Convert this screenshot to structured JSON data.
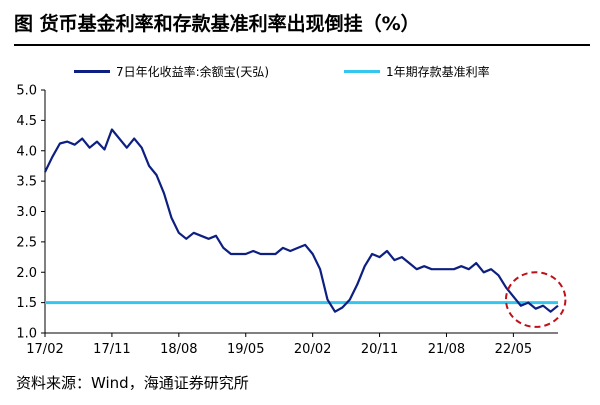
{
  "title": "图  货币基金利率和存款基准利率出现倒挂（%）",
  "source": "资料来源：Wind，海通证券研究所",
  "colors": {
    "yuebao": "#0d1f80",
    "deposit": "#35c6ef",
    "highlight": "#c0101a"
  },
  "chart_data": {
    "type": "line",
    "x_tick_labels": [
      "17/02",
      "17/11",
      "18/08",
      "19/05",
      "20/02",
      "20/11",
      "21/08",
      "22/05"
    ],
    "y_tick_labels": [
      "1.0",
      "1.5",
      "2.0",
      "2.5",
      "3.0",
      "3.5",
      "4.0",
      "4.5",
      "5.0"
    ],
    "ylim": [
      1.0,
      5.0
    ],
    "xlim": [
      "2017-02",
      "2022-11"
    ],
    "legend_position": "top",
    "series": [
      {
        "name": "7日年化收益率:余额宝(天弘)",
        "x": [
          "2017-02",
          "2017-03",
          "2017-04",
          "2017-05",
          "2017-06",
          "2017-07",
          "2017-08",
          "2017-09",
          "2017-10",
          "2017-11",
          "2017-12",
          "2018-01",
          "2018-02",
          "2018-03",
          "2018-04",
          "2018-05",
          "2018-06",
          "2018-07",
          "2018-08",
          "2018-09",
          "2018-10",
          "2018-11",
          "2018-12",
          "2019-01",
          "2019-02",
          "2019-03",
          "2019-04",
          "2019-05",
          "2019-06",
          "2019-07",
          "2019-08",
          "2019-09",
          "2019-10",
          "2019-11",
          "2019-12",
          "2020-01",
          "2020-02",
          "2020-03",
          "2020-04",
          "2020-05",
          "2020-06",
          "2020-07",
          "2020-08",
          "2020-09",
          "2020-10",
          "2020-11",
          "2020-12",
          "2021-01",
          "2021-02",
          "2021-03",
          "2021-04",
          "2021-05",
          "2021-06",
          "2021-07",
          "2021-08",
          "2021-09",
          "2021-10",
          "2021-11",
          "2021-12",
          "2022-01",
          "2022-02",
          "2022-03",
          "2022-04",
          "2022-05",
          "2022-06",
          "2022-07",
          "2022-08",
          "2022-09",
          "2022-10",
          "2022-11"
        ],
        "values": [
          3.65,
          3.9,
          4.12,
          4.15,
          4.1,
          4.2,
          4.05,
          4.15,
          4.02,
          4.35,
          4.2,
          4.05,
          4.2,
          4.05,
          3.75,
          3.6,
          3.3,
          2.9,
          2.65,
          2.55,
          2.65,
          2.6,
          2.55,
          2.6,
          2.4,
          2.3,
          2.3,
          2.3,
          2.35,
          2.3,
          2.3,
          2.3,
          2.4,
          2.35,
          2.4,
          2.45,
          2.3,
          2.05,
          1.55,
          1.35,
          1.42,
          1.55,
          1.8,
          2.1,
          2.3,
          2.25,
          2.35,
          2.2,
          2.25,
          2.15,
          2.05,
          2.1,
          2.05,
          2.05,
          2.05,
          2.05,
          2.1,
          2.05,
          2.15,
          2.0,
          2.05,
          1.95,
          1.75,
          1.6,
          1.45,
          1.5,
          1.4,
          1.45,
          1.35,
          1.45
        ]
      },
      {
        "name": "1年期存款基准利率",
        "x": [
          "2017-02",
          "2022-11"
        ],
        "values": [
          1.5,
          1.5
        ]
      }
    ],
    "annotations": [
      {
        "type": "ellipse",
        "style": "dashed",
        "around": "2022 inversion",
        "x_range": [
          "2022-04",
          "2022-12"
        ],
        "y_range": [
          1.1,
          2.0
        ]
      }
    ]
  }
}
